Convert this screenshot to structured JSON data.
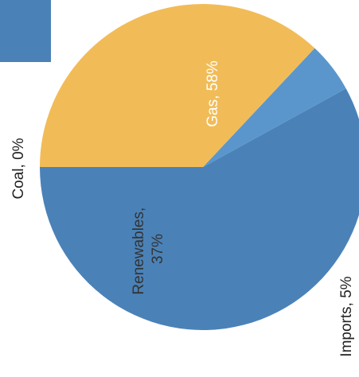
{
  "chart_data": {
    "type": "pie",
    "title": "",
    "slices": [
      {
        "label": "Gas, 58%",
        "value": 58,
        "color": "#4a82b8",
        "label_color": "#ffffff"
      },
      {
        "label": "Imports, 5%",
        "value": 5,
        "color": "#5a96cc",
        "label_color": "#222222"
      },
      {
        "label": "Renewables, 37%",
        "value": 37,
        "color": "#f1bc57",
        "label_color": "#333333",
        "lines": [
          "Renewables,",
          "37%"
        ]
      },
      {
        "label": "Coal, 0%",
        "value": 0,
        "color": "#4a82b8",
        "label_color": "#222222"
      }
    ]
  },
  "colors": {
    "background": "#ffffff",
    "corner_swatch": "#4a82b8"
  }
}
